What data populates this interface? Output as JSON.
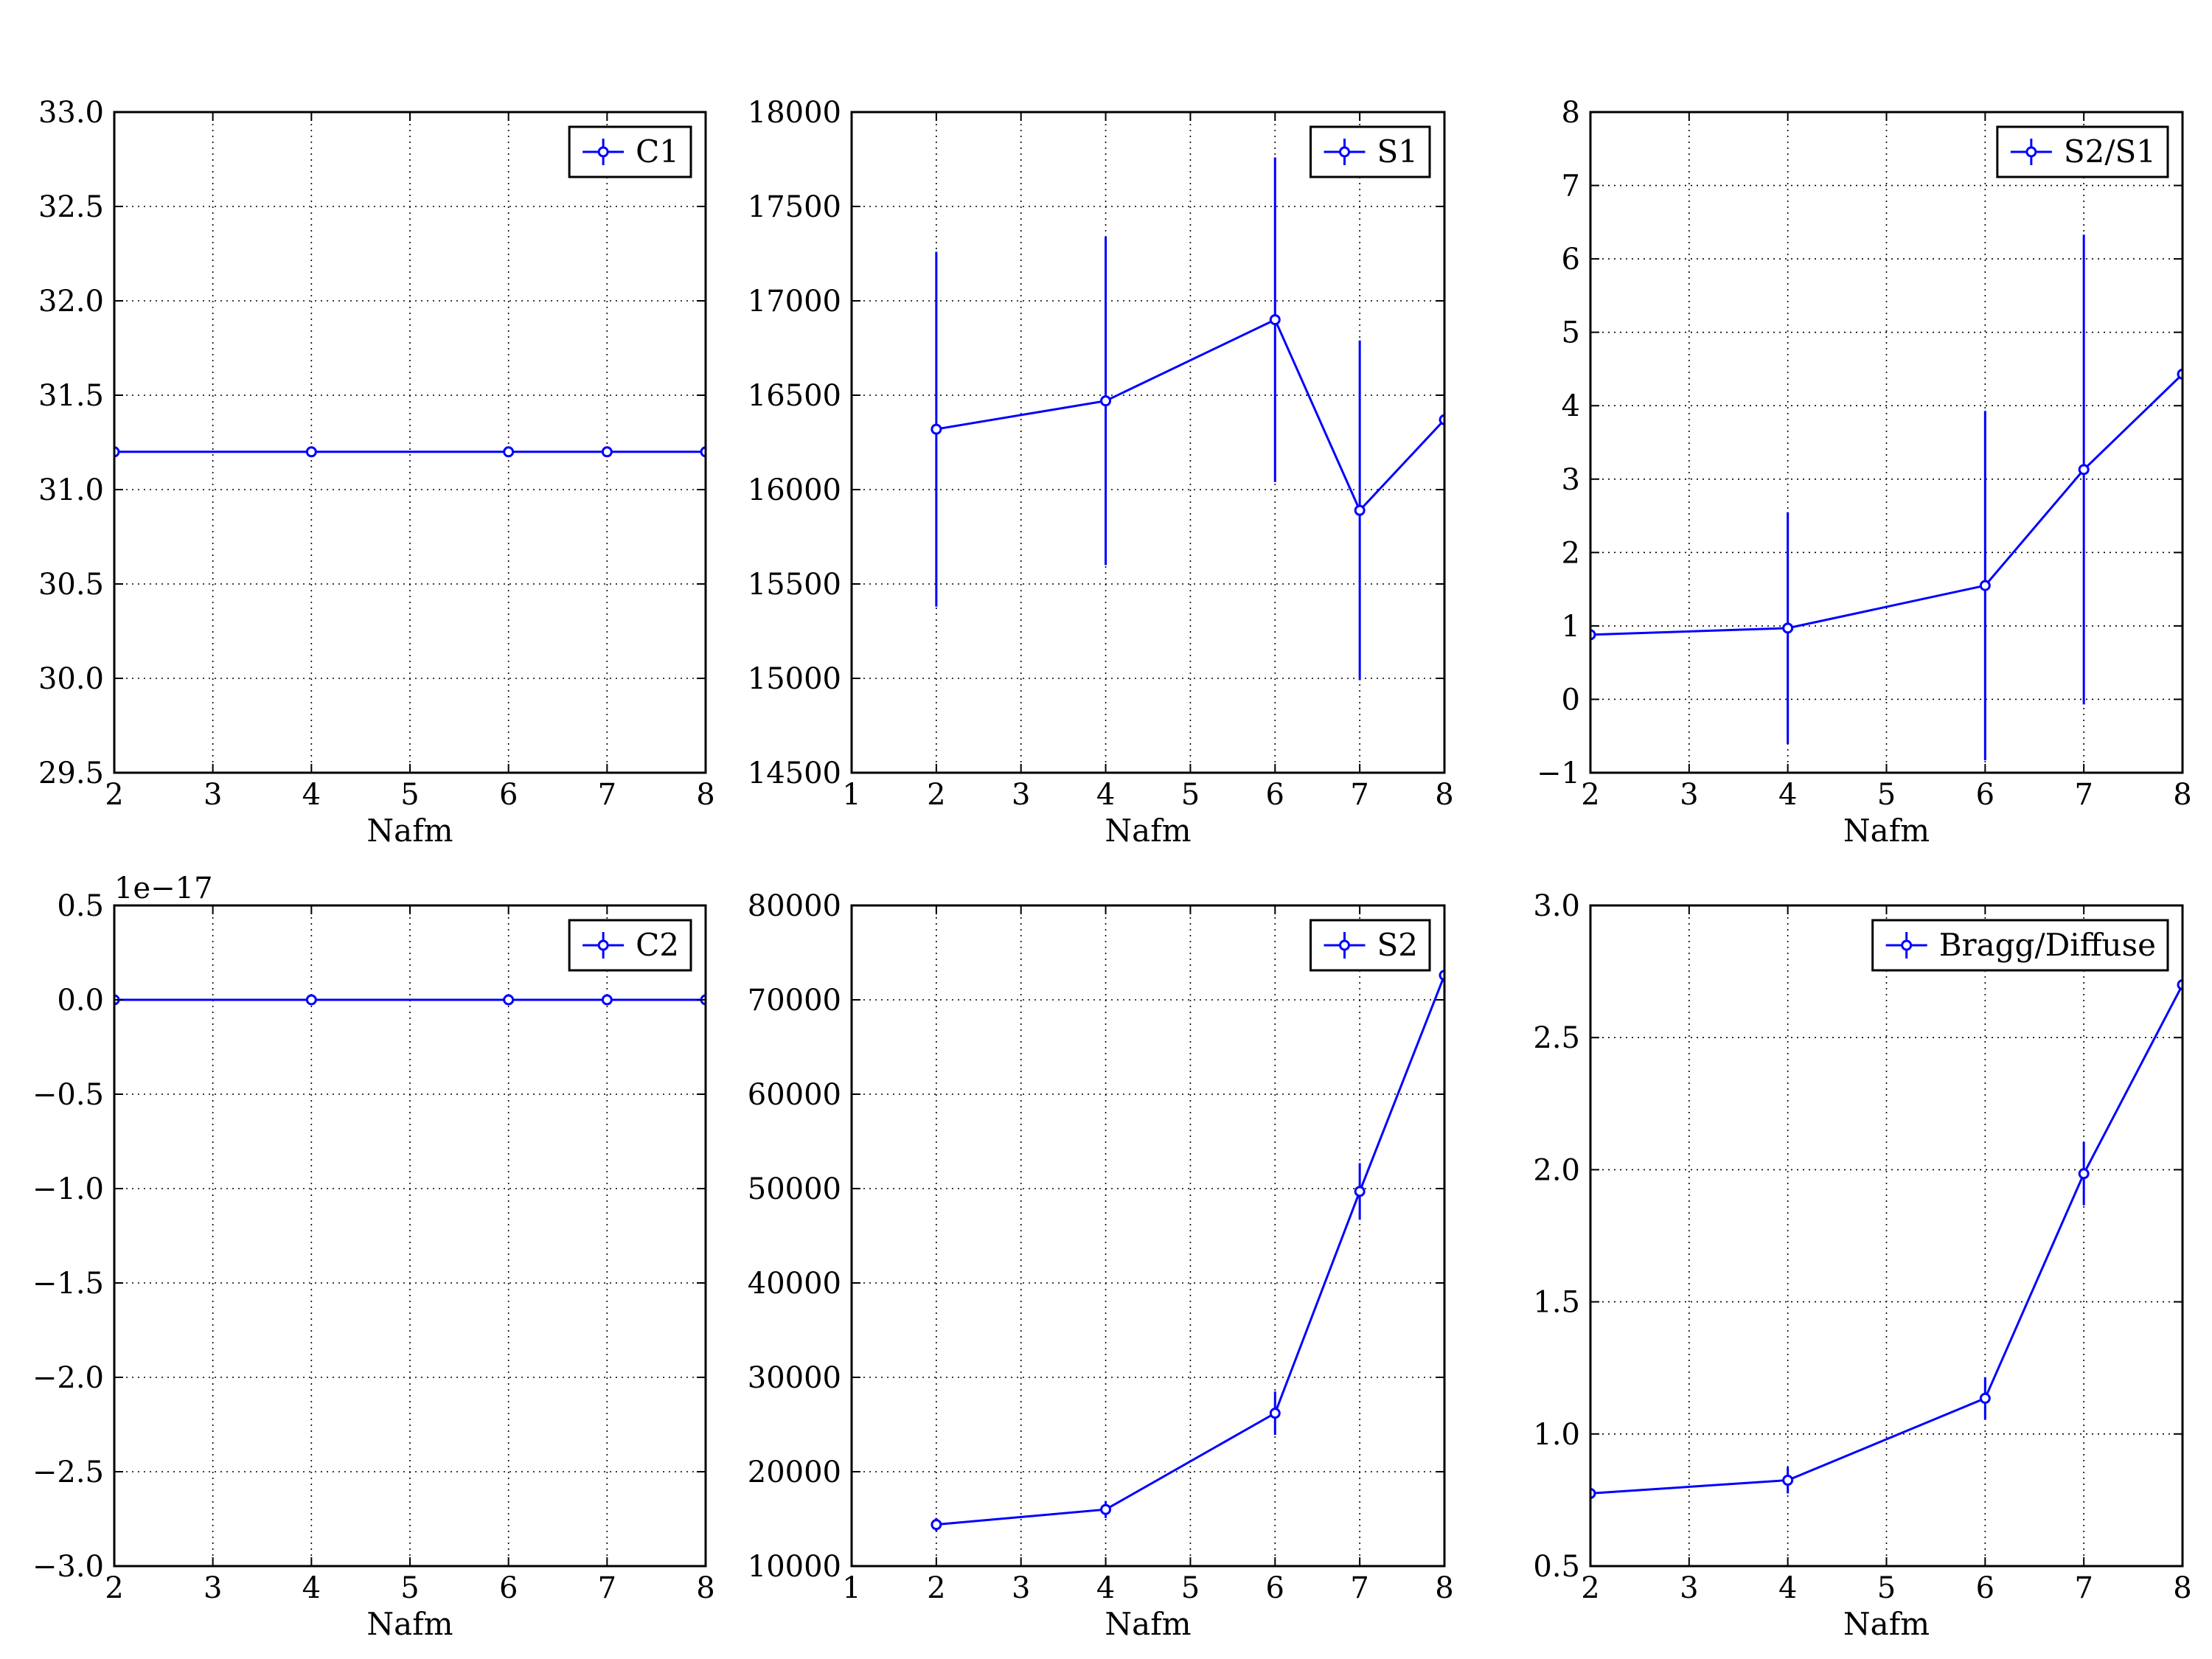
{
  "series_color": "#0000ff",
  "chart_data": [
    {
      "type": "line",
      "legend": "C1",
      "legend_loc": "top-right",
      "xlabel": "Nafm",
      "xlim": [
        2,
        8
      ],
      "xticks": [
        2,
        3,
        4,
        5,
        6,
        7,
        8
      ],
      "xtick_labels": [
        "2",
        "3",
        "4",
        "5",
        "6",
        "7",
        "8"
      ],
      "ylim": [
        29.5,
        33.0
      ],
      "yticks": [
        29.5,
        30.0,
        30.5,
        31.0,
        31.5,
        32.0,
        32.5,
        33.0
      ],
      "ytick_labels": [
        "29.5",
        "30.0",
        "30.5",
        "31.0",
        "31.5",
        "32.0",
        "32.5",
        "33.0"
      ],
      "offset_text": "",
      "grid": true,
      "x": [
        2,
        4,
        6,
        7,
        8
      ],
      "y": [
        31.2,
        31.2,
        31.2,
        31.2,
        31.2
      ],
      "yerr": [
        0,
        0,
        0,
        0,
        0
      ]
    },
    {
      "type": "line",
      "legend": "S1",
      "legend_loc": "top-right",
      "xlabel": "Nafm",
      "xlim": [
        1,
        8
      ],
      "xticks": [
        1,
        2,
        3,
        4,
        5,
        6,
        7,
        8
      ],
      "xtick_labels": [
        "1",
        "2",
        "3",
        "4",
        "5",
        "6",
        "7",
        "8"
      ],
      "ylim": [
        14500,
        18000
      ],
      "yticks": [
        14500,
        15000,
        15500,
        16000,
        16500,
        17000,
        17500,
        18000
      ],
      "ytick_labels": [
        "14500",
        "15000",
        "15500",
        "16000",
        "16500",
        "17000",
        "17500",
        "18000"
      ],
      "offset_text": "",
      "grid": true,
      "x": [
        2,
        4,
        6,
        7,
        8
      ],
      "y": [
        16320,
        16470,
        16900,
        15890,
        16370
      ],
      "yerr": [
        940,
        870,
        860,
        900,
        990
      ]
    },
    {
      "type": "line",
      "legend": "S2/S1",
      "legend_loc": "top-right",
      "xlabel": "Nafm",
      "xlim": [
        2,
        8
      ],
      "xticks": [
        2,
        3,
        4,
        5,
        6,
        7,
        8
      ],
      "xtick_labels": [
        "2",
        "3",
        "4",
        "5",
        "6",
        "7",
        "8"
      ],
      "ylim": [
        -1,
        8
      ],
      "yticks": [
        -1,
        0,
        1,
        2,
        3,
        4,
        5,
        6,
        7,
        8
      ],
      "ytick_labels": [
        "−1",
        "0",
        "1",
        "2",
        "3",
        "4",
        "5",
        "6",
        "7",
        "8"
      ],
      "offset_text": "",
      "grid": true,
      "x": [
        2,
        4,
        6,
        7,
        8
      ],
      "y": [
        0.88,
        0.97,
        1.55,
        3.13,
        4.43
      ],
      "yerr": [
        0,
        1.58,
        2.38,
        3.2,
        0
      ]
    },
    {
      "type": "line",
      "legend": "C2",
      "legend_loc": "top-right",
      "xlabel": "Nafm",
      "xlim": [
        2,
        8
      ],
      "xticks": [
        2,
        3,
        4,
        5,
        6,
        7,
        8
      ],
      "xtick_labels": [
        "2",
        "3",
        "4",
        "5",
        "6",
        "7",
        "8"
      ],
      "ylim": [
        -3.0,
        0.5
      ],
      "yticks": [
        -3.0,
        -2.5,
        -2.0,
        -1.5,
        -1.0,
        -0.5,
        0.0,
        0.5
      ],
      "ytick_labels": [
        "−3.0",
        "−2.5",
        "−2.0",
        "−1.5",
        "−1.0",
        "−0.5",
        "0.0",
        "0.5"
      ],
      "offset_text": "1e−17",
      "grid": true,
      "x": [
        2,
        4,
        6,
        7,
        8
      ],
      "y": [
        0,
        0,
        0,
        0,
        0
      ],
      "yerr": [
        0,
        0,
        0,
        0,
        0
      ]
    },
    {
      "type": "line",
      "legend": "S2",
      "legend_loc": "top-right",
      "xlabel": "Nafm",
      "xlim": [
        1,
        8
      ],
      "xticks": [
        1,
        2,
        3,
        4,
        5,
        6,
        7,
        8
      ],
      "xtick_labels": [
        "1",
        "2",
        "3",
        "4",
        "5",
        "6",
        "7",
        "8"
      ],
      "ylim": [
        10000,
        80000
      ],
      "yticks": [
        10000,
        20000,
        30000,
        40000,
        50000,
        60000,
        70000,
        80000
      ],
      "ytick_labels": [
        "10000",
        "20000",
        "30000",
        "40000",
        "50000",
        "60000",
        "70000",
        "80000"
      ],
      "offset_text": "",
      "grid": true,
      "x": [
        2,
        4,
        6,
        7,
        8
      ],
      "y": [
        14400,
        16000,
        26200,
        49700,
        72600
      ],
      "yerr": [
        700,
        900,
        2300,
        3000,
        0
      ]
    },
    {
      "type": "line",
      "legend": "Bragg/Diffuse",
      "legend_loc": "top-right",
      "xlabel": "Nafm",
      "xlim": [
        2,
        8
      ],
      "xticks": [
        2,
        3,
        4,
        5,
        6,
        7,
        8
      ],
      "xtick_labels": [
        "2",
        "3",
        "4",
        "5",
        "6",
        "7",
        "8"
      ],
      "ylim": [
        0.5,
        3.0
      ],
      "yticks": [
        0.5,
        1.0,
        1.5,
        2.0,
        2.5,
        3.0
      ],
      "ytick_labels": [
        "0.5",
        "1.0",
        "1.5",
        "2.0",
        "2.5",
        "3.0"
      ],
      "offset_text": "",
      "grid": true,
      "x": [
        2,
        4,
        6,
        7,
        8
      ],
      "y": [
        0.775,
        0.825,
        1.135,
        1.985,
        2.7
      ],
      "yerr": [
        0,
        0.05,
        0.08,
        0.12,
        0
      ]
    }
  ]
}
